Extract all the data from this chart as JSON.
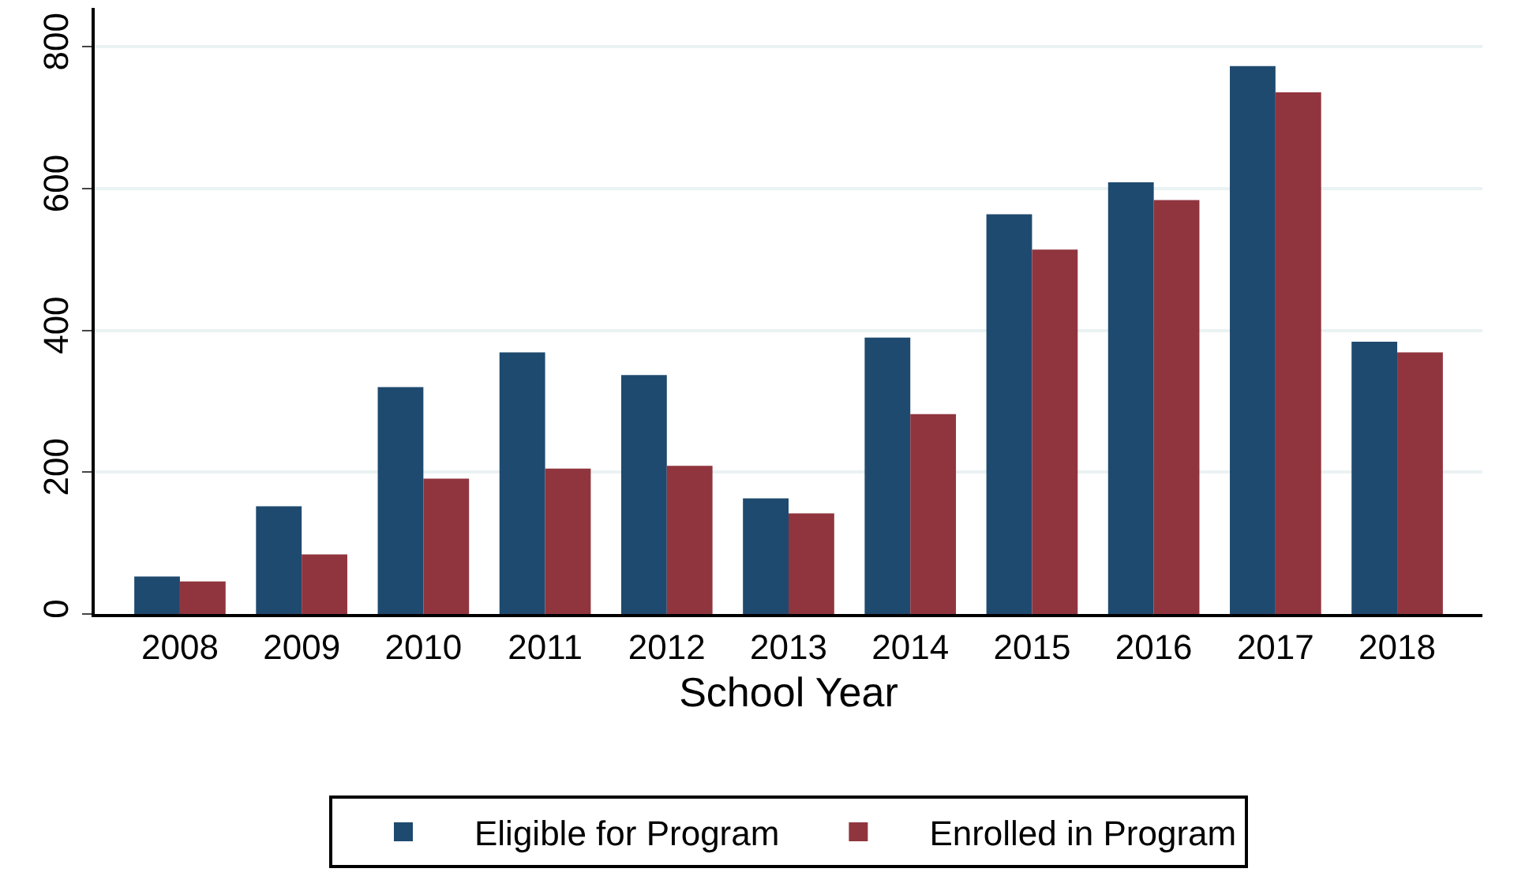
{
  "chart_data": {
    "type": "bar",
    "xlabel": "School Year",
    "categories": [
      "2008",
      "2009",
      "2010",
      "2011",
      "2012",
      "2013",
      "2014",
      "2015",
      "2016",
      "2017",
      "2018"
    ],
    "series": [
      {
        "name": "Eligible for Program",
        "color": "#1f4a6f",
        "values": [
          53,
          152,
          320,
          369,
          337,
          163,
          390,
          564,
          609,
          773,
          384
        ]
      },
      {
        "name": "Enrolled in Program",
        "color": "#90353e",
        "values": [
          46,
          84,
          191,
          205,
          209,
          142,
          282,
          514,
          584,
          736,
          369
        ]
      }
    ],
    "ylim": [
      0,
      855
    ],
    "yticks": [
      0,
      200,
      400,
      600,
      800
    ],
    "grid": "y",
    "legend": "bottom"
  }
}
